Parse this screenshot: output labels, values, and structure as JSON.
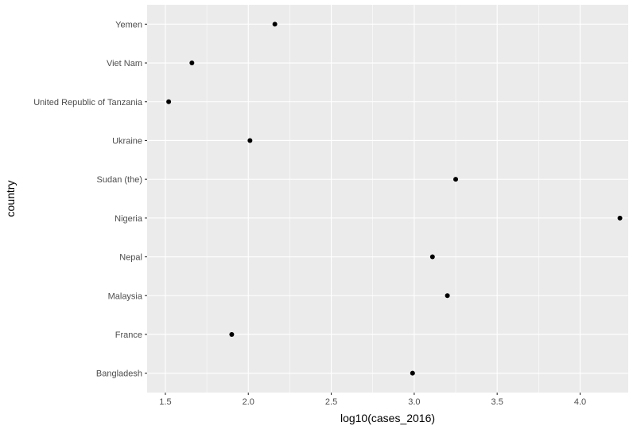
{
  "chart_data": {
    "type": "scatter",
    "title": "",
    "xlabel": "log10(cases_2016)",
    "ylabel": "country",
    "xlim": [
      1.39,
      4.29
    ],
    "x_ticks": [
      1.5,
      2.0,
      2.5,
      3.0,
      3.5,
      4.0
    ],
    "x_tick_labels": [
      "1.5",
      "2.0",
      "2.5",
      "3.0",
      "3.5",
      "4.0"
    ],
    "categories": [
      "Bangladesh",
      "France",
      "Malaysia",
      "Nepal",
      "Nigeria",
      "Sudan (the)",
      "Ukraine",
      "United Republic of Tanzania",
      "Viet Nam",
      "Yemen"
    ],
    "points": [
      {
        "y": "Bangladesh",
        "x": 2.99
      },
      {
        "y": "France",
        "x": 1.9
      },
      {
        "y": "Malaysia",
        "x": 3.2
      },
      {
        "y": "Nepal",
        "x": 3.11
      },
      {
        "y": "Nigeria",
        "x": 4.24
      },
      {
        "y": "Sudan (the)",
        "x": 3.25
      },
      {
        "y": "Ukraine",
        "x": 2.01
      },
      {
        "y": "United Republic of Tanzania",
        "x": 1.52
      },
      {
        "y": "Viet Nam",
        "x": 1.66
      },
      {
        "y": "Yemen",
        "x": 2.16
      }
    ],
    "grid": true,
    "colors": {
      "panel": "#ebebeb",
      "grid_major": "#ffffff",
      "point": "#000000",
      "tick_text": "#4d4d4d",
      "tick_mark": "#333333"
    }
  }
}
